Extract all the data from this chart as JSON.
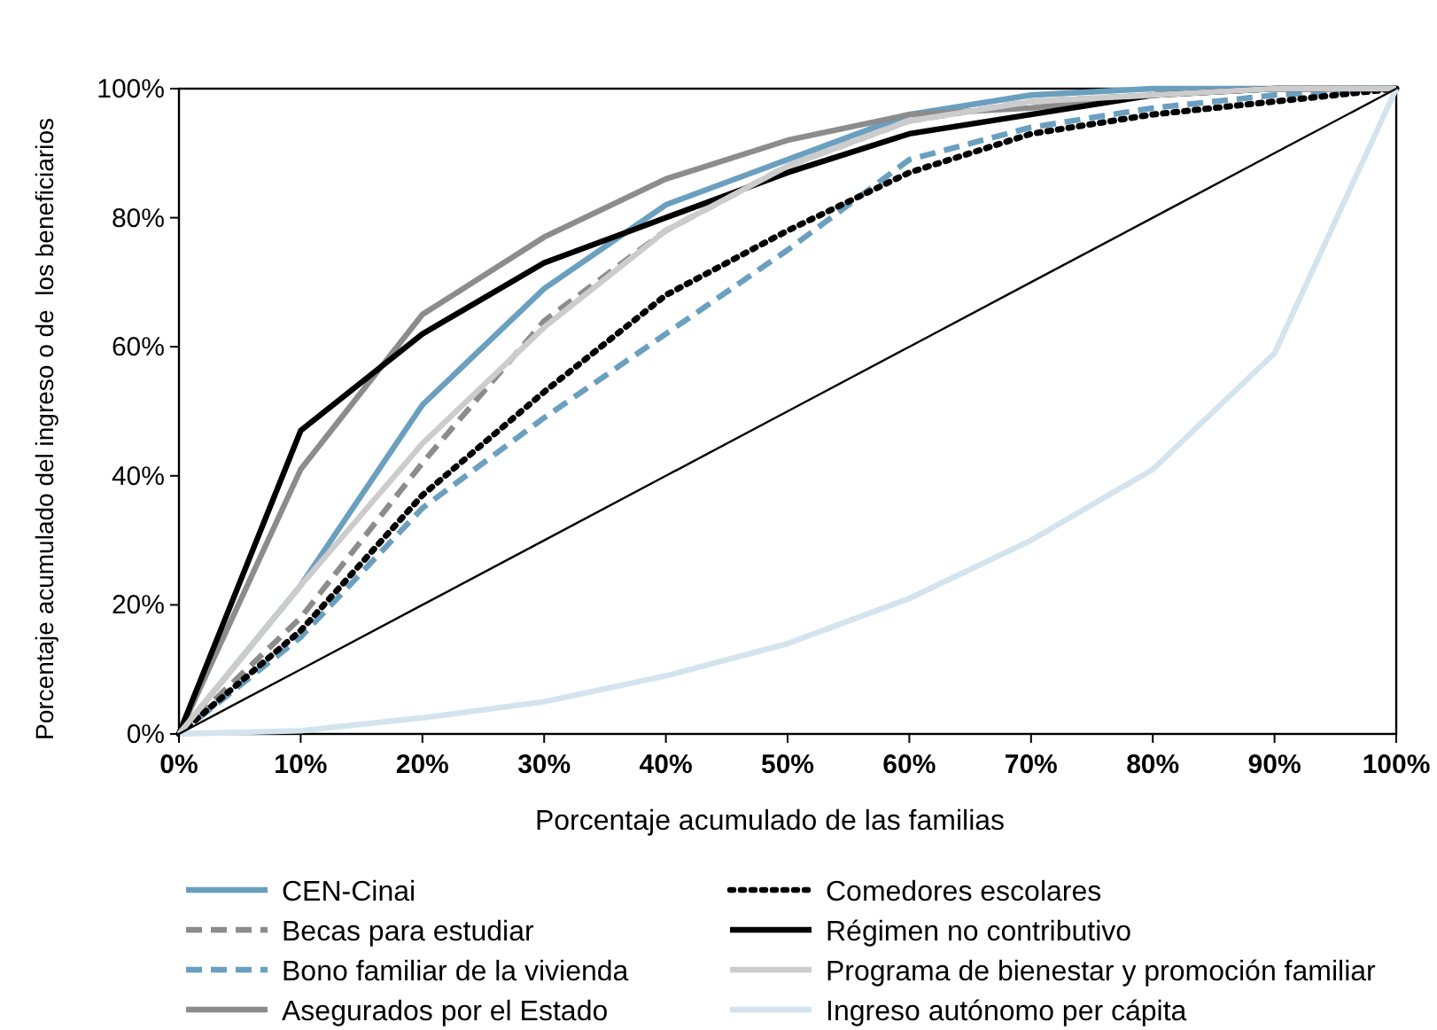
{
  "chart_data": {
    "type": "line",
    "xlabel": "Porcentaje acumulado de las familias",
    "ylabel": "Porcentaje acumulado del ingreso o de  los beneficiarios",
    "x": [
      0,
      10,
      20,
      30,
      40,
      50,
      60,
      70,
      80,
      90,
      100
    ],
    "xlim": [
      0,
      100
    ],
    "ylim": [
      0,
      100
    ],
    "xticks": [
      {
        "value": 0,
        "label": "0%"
      },
      {
        "value": 10,
        "label": "10%"
      },
      {
        "value": 20,
        "label": "20%"
      },
      {
        "value": 30,
        "label": "30%"
      },
      {
        "value": 40,
        "label": "40%"
      },
      {
        "value": 50,
        "label": "50%"
      },
      {
        "value": 60,
        "label": "60%"
      },
      {
        "value": 70,
        "label": "70%"
      },
      {
        "value": 80,
        "label": "80%"
      },
      {
        "value": 90,
        "label": "90%"
      },
      {
        "value": 100,
        "label": "100%"
      }
    ],
    "yticks": [
      {
        "value": 0,
        "label": "0%"
      },
      {
        "value": 20,
        "label": "20%"
      },
      {
        "value": 40,
        "label": "40%"
      },
      {
        "value": 60,
        "label": "60%"
      },
      {
        "value": 80,
        "label": "80%"
      },
      {
        "value": 100,
        "label": "100%"
      }
    ],
    "grid": false,
    "legend": "bottom",
    "marker": "none",
    "series": [
      {
        "name": "CEN-Cinai",
        "color": "#6a9fbf",
        "line_style": "solid",
        "values": [
          0,
          23,
          51,
          69,
          82,
          89,
          96,
          99,
          100,
          100,
          100
        ]
      },
      {
        "name": "Becas para estudiar",
        "color": "#8c8c8c",
        "line_style": "dashed",
        "values": [
          0,
          18,
          42,
          64,
          78,
          88,
          95,
          98,
          99,
          100,
          100
        ]
      },
      {
        "name": "Bono familiar de la vivienda",
        "color": "#6a9fbf",
        "line_style": "dashed",
        "values": [
          0,
          15,
          35,
          49,
          62,
          75,
          89,
          94,
          97,
          99,
          100
        ]
      },
      {
        "name": "Asegurados por el Estado",
        "color": "#8c8c8c",
        "line_style": "solid",
        "values": [
          0,
          41,
          65,
          77,
          86,
          92,
          96,
          97,
          99,
          100,
          100
        ]
      },
      {
        "name": "Comedores escolares",
        "color": "#000000",
        "line_style": "dotted",
        "values": [
          0,
          16,
          37,
          53,
          68,
          78,
          87,
          93,
          96,
          98,
          100
        ]
      },
      {
        "name": "Régimen no contributivo",
        "color": "#000000",
        "line_style": "solid",
        "values": [
          0,
          47,
          62,
          73,
          80,
          87,
          93,
          96,
          99,
          100,
          100
        ]
      },
      {
        "name": "Programa de bienestar y promoción familiar",
        "color": "#cccccc",
        "line_style": "solid",
        "values": [
          0,
          23,
          45,
          63,
          78,
          88,
          95,
          98,
          99,
          100,
          100
        ]
      },
      {
        "name": "Ingreso autónomo per cápita",
        "color": "#d4e4ee",
        "line_style": "solid",
        "values": [
          0,
          0.5,
          2.5,
          5,
          9,
          14,
          21,
          30,
          41,
          59,
          100
        ]
      },
      {
        "color": "#000000",
        "line_style": "solid",
        "values": [
          0,
          10,
          20,
          30,
          40,
          50,
          60,
          70,
          80,
          90,
          100
        ]
      }
    ]
  }
}
